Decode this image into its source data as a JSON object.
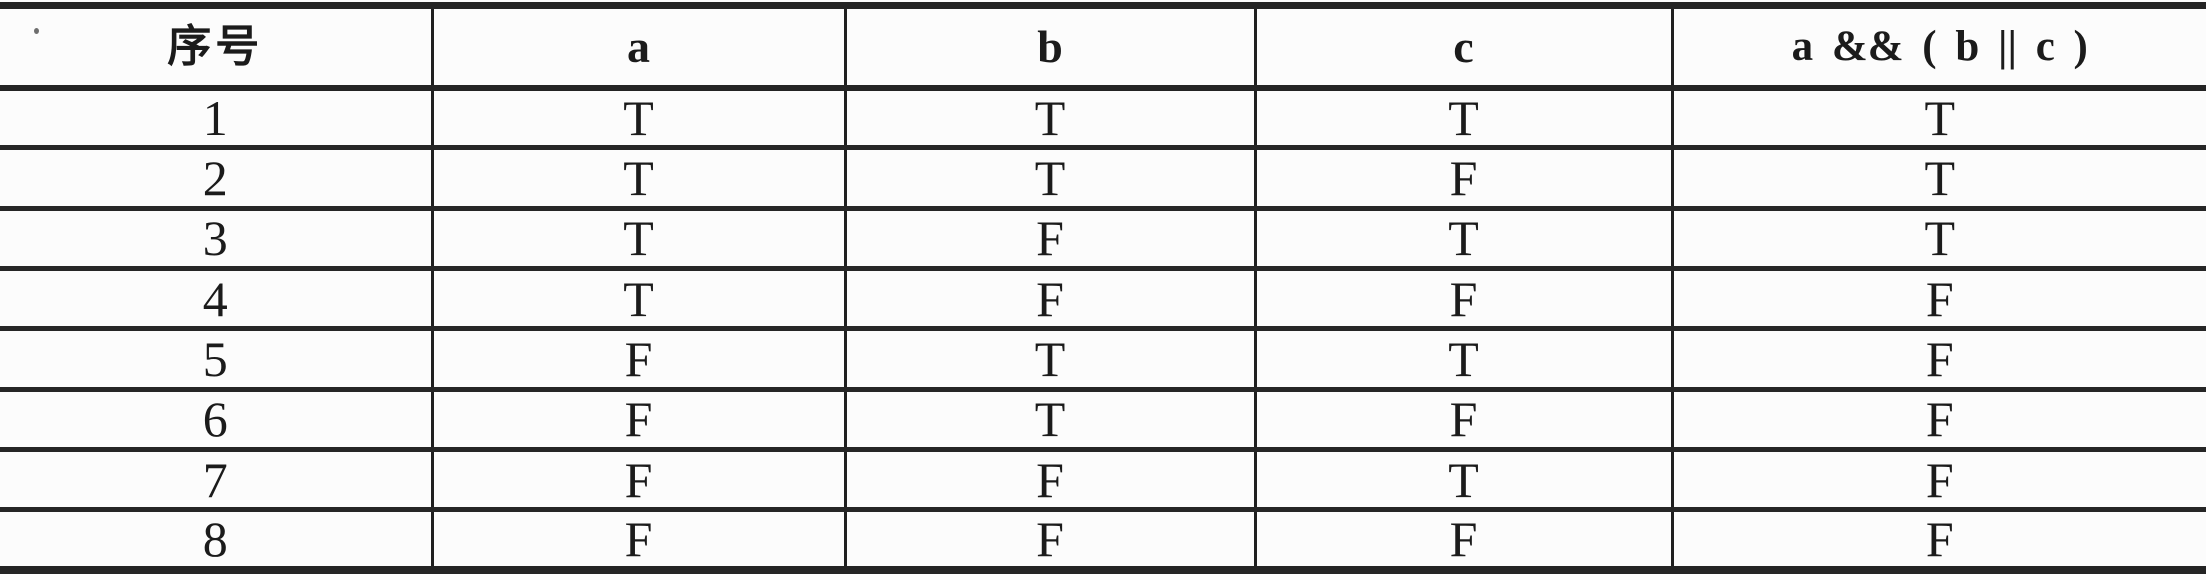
{
  "colors": {
    "ink": "#1b1b1b",
    "line": "#242424",
    "background": "#fcfcfc"
  },
  "table": {
    "columns": [
      {
        "label": "序号"
      },
      {
        "label": "a"
      },
      {
        "label": "b"
      },
      {
        "label": "c"
      },
      {
        "label": "a && ( b || c )"
      }
    ],
    "rows": [
      {
        "index": "1",
        "a": "T",
        "b": "T",
        "c": "T",
        "result": "T"
      },
      {
        "index": "2",
        "a": "T",
        "b": "T",
        "c": "F",
        "result": "T"
      },
      {
        "index": "3",
        "a": "T",
        "b": "F",
        "c": "T",
        "result": "T"
      },
      {
        "index": "4",
        "a": "T",
        "b": "F",
        "c": "F",
        "result": "F"
      },
      {
        "index": "5",
        "a": "F",
        "b": "T",
        "c": "T",
        "result": "F"
      },
      {
        "index": "6",
        "a": "F",
        "b": "T",
        "c": "F",
        "result": "F"
      },
      {
        "index": "7",
        "a": "F",
        "b": "F",
        "c": "T",
        "result": "F"
      },
      {
        "index": "8",
        "a": "F",
        "b": "F",
        "c": "F",
        "result": "F"
      }
    ]
  }
}
